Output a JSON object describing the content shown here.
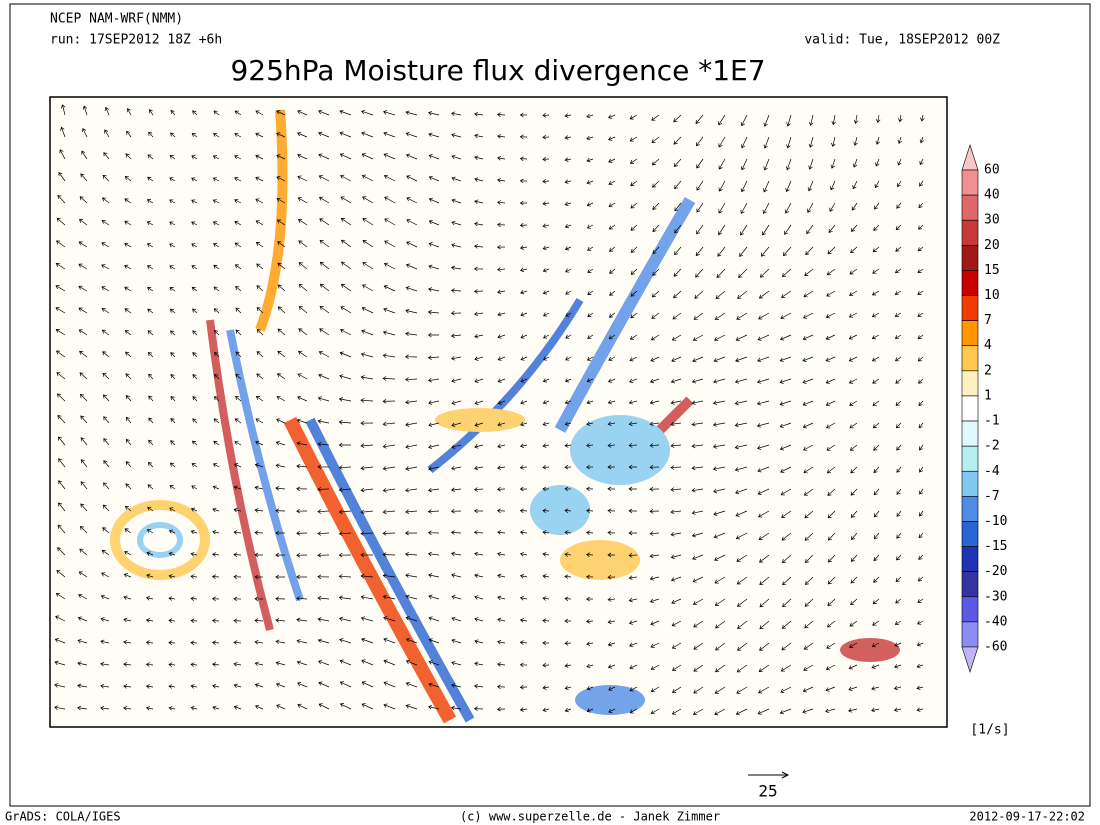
{
  "header": {
    "model": "NCEP NAM-WRF(NMM)",
    "run": "run: 17SEP2012 18Z +6h",
    "valid": "valid: Tue, 18SEP2012 00Z",
    "title": "925hPa Moisture flux divergence *1E7"
  },
  "colorbar": {
    "levels": [
      60,
      40,
      30,
      20,
      15,
      10,
      7,
      4,
      2,
      1,
      -1,
      -2,
      -4,
      -7,
      -10,
      -15,
      -20,
      -30,
      -40,
      -60
    ],
    "colors": [
      "#f8c8c8",
      "#f09090",
      "#e06868",
      "#c83838",
      "#a01818",
      "#c80000",
      "#f03c00",
      "#ff9600",
      "#ffc850",
      "#fff0c0",
      "#ffffff",
      "#e0f8ff",
      "#b4f0f0",
      "#82c8f0",
      "#508ce6",
      "#2864d2",
      "#1e32b4",
      "#3232a0",
      "#5a5ae6",
      "#8c8cf5",
      "#c3b4fa"
    ],
    "unit": "[1/s]"
  },
  "vector_scale": {
    "label": "25"
  },
  "footer": {
    "left": "GrADS: COLA/IGES",
    "center": "(c) www.superzelle.de - Janek Zimmer",
    "right": "2012-09-17-22:02"
  }
}
